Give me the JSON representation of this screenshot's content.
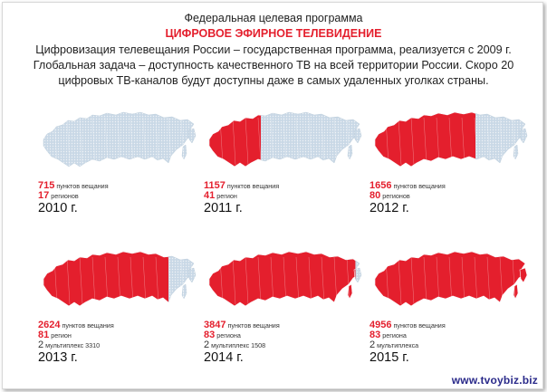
{
  "header": {
    "line1": "Федеральная целевая программа",
    "line2": "ЦИФРОВОЕ ЭФИРНОЕ ТЕЛЕВИДЕНИЕ",
    "desc": [
      "Цифровизация телевещания России – государственная программа, реализуется с 2009 г.",
      "Глобальная задача – доступность качественного ТВ на всей территории России. Скоро 20",
      "цифровых ТВ-каналов будут доступны даже в самых удаленных уголках страны."
    ]
  },
  "colors": {
    "accent": "#e41f2d",
    "map_base": "#c9d8e6",
    "map_dots": "#eef2f6"
  },
  "panels": [
    {
      "points": "715",
      "points_label": "пунктов вещания",
      "regions": "17",
      "regions_label": "регионов",
      "year": "2010 г.",
      "coverage": 0.03
    },
    {
      "points": "1157",
      "points_label": "пунктов вещания",
      "regions": "41",
      "regions_label": "регион",
      "year": "2011 г.",
      "coverage": 0.35
    },
    {
      "points": "1656",
      "points_label": "пунктов вещания",
      "regions": "80",
      "regions_label": "регионов",
      "year": "2012 г.",
      "coverage": 0.65
    },
    {
      "points": "2624",
      "points_label": "пунктов вещания",
      "regions": "81",
      "regions_label": "регион",
      "mux": "2",
      "mux_label": "мультиплекс 3310",
      "year": "2013 г.",
      "coverage": 0.8
    },
    {
      "points": "3847",
      "points_label": "пунктов вещания",
      "regions": "83",
      "regions_label": "региона",
      "mux": "2",
      "mux_label": "мультиплекс 1508",
      "year": "2014 г.",
      "coverage": 0.93
    },
    {
      "points": "4956",
      "points_label": "пунктов вещания",
      "regions": "83",
      "regions_label": "региона",
      "mux": "2",
      "mux_label": "мультиплекса",
      "year": "2015 г.",
      "coverage": 1.0
    }
  ],
  "watermark": "www.tvoybiz.biz"
}
